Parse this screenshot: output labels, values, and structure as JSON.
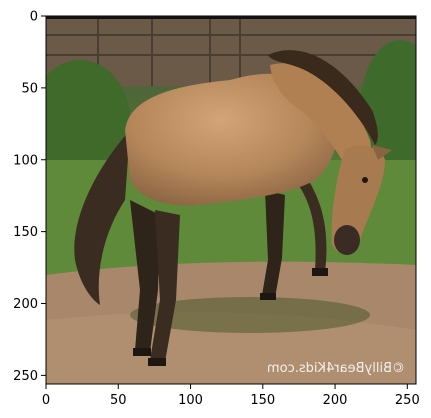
{
  "image": {
    "watermark": "©BillyBear4Kids.com",
    "subject": "horse-grazing"
  },
  "axes": {
    "x_ticks": [
      "0",
      "50",
      "100",
      "150",
      "200",
      "250"
    ],
    "y_ticks": [
      "0",
      "50",
      "100",
      "150",
      "200",
      "250"
    ],
    "x_range": [
      0,
      256
    ],
    "y_range": [
      0,
      256
    ]
  },
  "colors": {
    "coat": "#b4865a",
    "mane": "#3a2a1c",
    "grass": "#5f8a3a",
    "dirt": "#a08060",
    "fence": "#6b5a48"
  }
}
